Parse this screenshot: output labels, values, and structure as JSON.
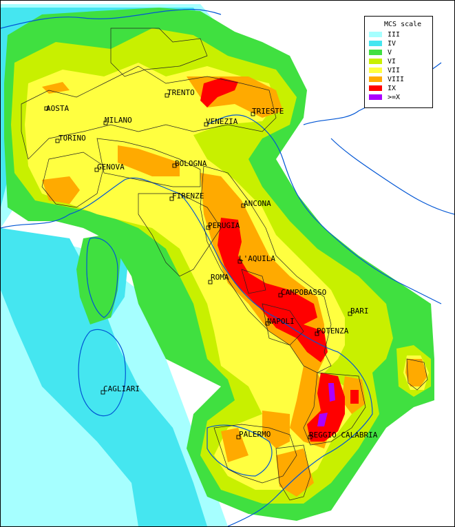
{
  "legend": {
    "title": "MCS scale",
    "items": [
      {
        "label": "III",
        "color": "#a6ffff"
      },
      {
        "label": "IV",
        "color": "#45e6f0"
      },
      {
        "label": "V",
        "color": "#40e040"
      },
      {
        "label": "VI",
        "color": "#c8f000"
      },
      {
        "label": "VII",
        "color": "#ffff40"
      },
      {
        "label": "VIII",
        "color": "#ffaa00"
      },
      {
        "label": "IX",
        "color": "#ff0000"
      },
      {
        "label": ">=X",
        "color": "#aa00ff"
      }
    ]
  },
  "cities": [
    {
      "name": "AOSTA"
    },
    {
      "name": "MILANO"
    },
    {
      "name": "TRENTO"
    },
    {
      "name": "VENEZIA"
    },
    {
      "name": "TRIESTE"
    },
    {
      "name": "TORINO"
    },
    {
      "name": "GENOVA"
    },
    {
      "name": "BOLOGNA"
    },
    {
      "name": "FIRENZE"
    },
    {
      "name": "ANCONA"
    },
    {
      "name": "PERUGIA"
    },
    {
      "name": "L'AQUILA"
    },
    {
      "name": "ROMA"
    },
    {
      "name": "CAMPOBASSO"
    },
    {
      "name": "BARI"
    },
    {
      "name": "NAPOLI"
    },
    {
      "name": "POTENZA"
    },
    {
      "name": "CAGLIARI"
    },
    {
      "name": "PALERMO"
    },
    {
      "name": "REGGIO CALABRIA"
    }
  ]
}
